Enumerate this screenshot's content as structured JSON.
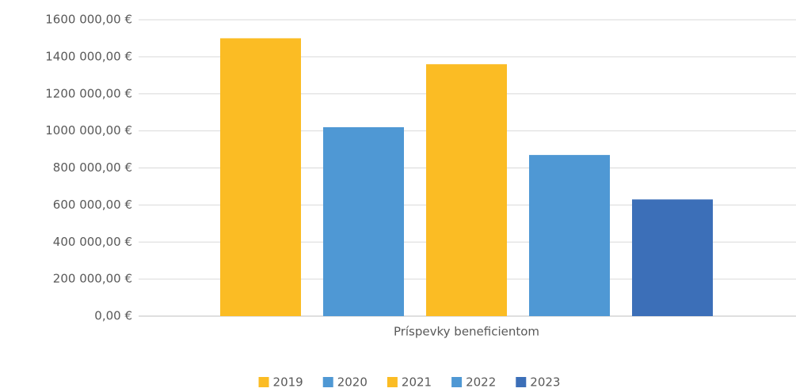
{
  "chart_data": {
    "type": "bar",
    "categories": [
      "Príspevky beneficientom"
    ],
    "series": [
      {
        "name": "2019",
        "color": "#fbbc24",
        "values": [
          1500000
        ]
      },
      {
        "name": "2020",
        "color": "#4f98d4",
        "values": [
          1020000
        ]
      },
      {
        "name": "2021",
        "color": "#fbbc24",
        "values": [
          1360000
        ]
      },
      {
        "name": "2022",
        "color": "#4f98d4",
        "values": [
          870000
        ]
      },
      {
        "name": "2023",
        "color": "#3c6fb8",
        "values": [
          630000
        ]
      }
    ],
    "ylim": [
      0,
      1600000
    ],
    "yticks": [
      {
        "value": 0,
        "label": "0,00 €"
      },
      {
        "value": 200000,
        "label": "200 000,00 €"
      },
      {
        "value": 400000,
        "label": "400 000,00 €"
      },
      {
        "value": 600000,
        "label": "600 000,00 €"
      },
      {
        "value": 800000,
        "label": "800 000,00 €"
      },
      {
        "value": 1000000,
        "label": "1000 000,00 €"
      },
      {
        "value": 1200000,
        "label": "1200 000,00 €"
      },
      {
        "value": 1400000,
        "label": "1400 000,00 €"
      },
      {
        "value": 1600000,
        "label": "1600 000,00 €"
      }
    ],
    "grid": true,
    "legend": "bottom"
  }
}
